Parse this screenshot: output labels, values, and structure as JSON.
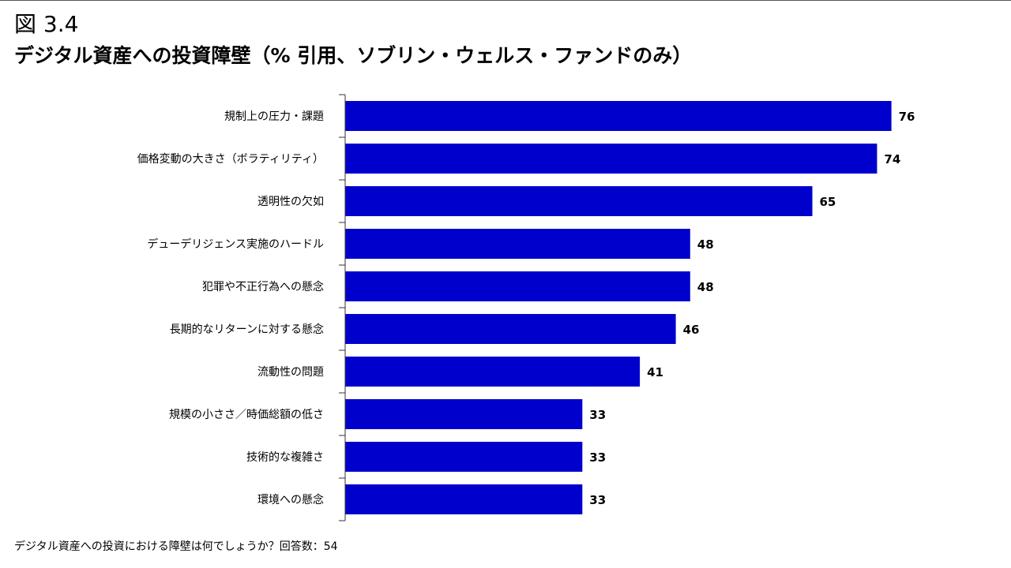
{
  "figure_number": "図 3.4",
  "footnote": "デジタル資産への投資における障壁は何でしょうか？回答数：54",
  "colors": {
    "bar": "#0000CD",
    "axis": "#333333"
  },
  "chart_data": {
    "type": "bar",
    "orientation": "horizontal",
    "title": "デジタル資産への投資障壁（% 引用、ソブリン・ウェルス・ファンドのみ）",
    "xlabel": "",
    "ylabel": "",
    "xlim": [
      0,
      80
    ],
    "grid": false,
    "data_labels": true,
    "categories": [
      "規制上の圧力・課題",
      "価格変動の大きさ（ボラティリティ）",
      "透明性の欠如",
      "デューデリジェンス実施のハードル",
      "犯罪や不正行為への懸念",
      "長期的なリターンに対する懸念",
      "流動性の問題",
      "規模の小ささ／時価総額の低さ",
      "技術的な複雑さ",
      "環境への懸念"
    ],
    "values": [
      76,
      74,
      65,
      48,
      48,
      46,
      41,
      33,
      33,
      33
    ]
  }
}
